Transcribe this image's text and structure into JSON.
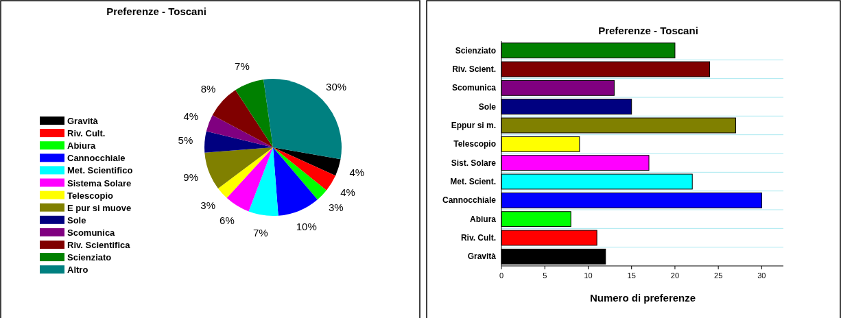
{
  "chart_data": [
    {
      "type": "pie",
      "title": "Preferenze - Toscani",
      "categories": [
        "Gravità",
        "Riv. Cult.",
        "Abiura",
        "Cannocchiale",
        "Met. Scientifico",
        "Sistema Solare",
        "Telescopio",
        "E pur si muove",
        "Sole",
        "Scomunica",
        "Riv. Scientifica",
        "Scienziato",
        "Altro"
      ],
      "values": [
        4,
        4,
        3,
        10,
        7,
        6,
        3,
        9,
        5,
        4,
        8,
        7,
        30
      ],
      "value_labels": [
        "4%",
        "4%",
        "3%",
        "10%",
        "7%",
        "6%",
        "3%",
        "9%",
        "5%",
        "4%",
        "8%",
        "7%",
        "30%"
      ],
      "colors": [
        "#000000",
        "#ff0000",
        "#00ff00",
        "#0000ff",
        "#00ffff",
        "#ff00ff",
        "#ffff00",
        "#808000",
        "#000080",
        "#800080",
        "#800000",
        "#008000",
        "#008080"
      ],
      "legend": "left"
    },
    {
      "type": "bar",
      "orientation": "horizontal",
      "title": "Preferenze - Toscani",
      "xlabel": "Numero di preferenze",
      "categories": [
        "Scienziato",
        "Riv. Scient.",
        "Scomunica",
        "Sole",
        "Eppur si m.",
        "Telescopio",
        "Sist. Solare",
        "Met. Scient.",
        "Cannocchiale",
        "Abiura",
        "Riv. Cult.",
        "Gravità"
      ],
      "values": [
        20,
        24,
        13,
        15,
        27,
        9,
        17,
        22,
        30,
        8,
        11,
        12
      ],
      "colors": [
        "#008000",
        "#800000",
        "#800080",
        "#000080",
        "#808000",
        "#ffff00",
        "#ff00ff",
        "#00ffff",
        "#0000ff",
        "#00ff00",
        "#ff0000",
        "#000000"
      ],
      "xlim": [
        0,
        32.5
      ],
      "xticks": [
        0,
        5,
        10,
        15,
        20,
        25,
        30
      ],
      "grid": "y"
    }
  ]
}
